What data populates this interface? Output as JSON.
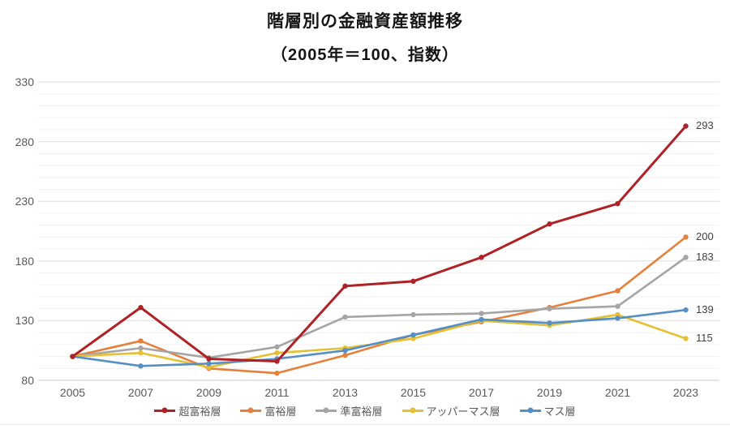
{
  "title": "階層別の金融資産額推移",
  "subtitle": "（2005年＝100、指数）",
  "chart_data": {
    "type": "line",
    "categories": [
      "2005",
      "2007",
      "2009",
      "2011",
      "2013",
      "2015",
      "2017",
      "2019",
      "2021",
      "2023"
    ],
    "series": [
      {
        "name": "超富裕層",
        "color": "#B02126",
        "values": [
          100,
          141,
          98,
          96,
          159,
          163,
          183,
          211,
          228,
          293
        ],
        "end_label": "293"
      },
      {
        "name": "富裕層",
        "color": "#E5803C",
        "values": [
          100,
          113,
          90,
          86,
          101,
          118,
          129,
          141,
          155,
          200
        ],
        "end_label": "200"
      },
      {
        "name": "準富裕層",
        "color": "#A5A5A5",
        "values": [
          100,
          107,
          99,
          108,
          133,
          135,
          136,
          140,
          142,
          183
        ],
        "end_label": "183"
      },
      {
        "name": "アッパーマス層",
        "color": "#E5C030",
        "values": [
          100,
          103,
          91,
          103,
          107,
          115,
          130,
          126,
          135,
          115
        ],
        "end_label": "115"
      },
      {
        "name": "マス層",
        "color": "#568FC6",
        "values": [
          100,
          92,
          94,
          98,
          105,
          118,
          131,
          128,
          132,
          139
        ],
        "end_label": "139"
      }
    ],
    "ylim": [
      80,
      330
    ],
    "yticks": [
      330,
      280,
      230,
      180,
      130,
      80
    ],
    "minor_grid_step": 10,
    "grid": true,
    "legend_position": "bottom",
    "xlabel": "",
    "ylabel": ""
  },
  "colors": {
    "major_grid": "#dddddd",
    "minor_grid": "#f2f2f2",
    "baseline": "#c9c9c9",
    "tick_text": "#595959",
    "end_label_text": "#404040"
  }
}
